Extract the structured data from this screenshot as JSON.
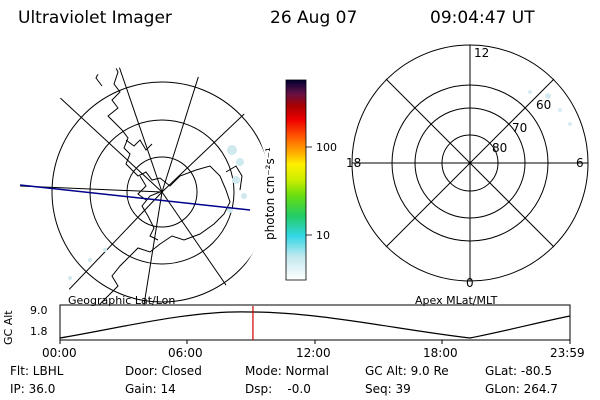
{
  "header": {
    "title": "Ultraviolet Imager",
    "date": "26 Aug 07",
    "time": "09:04:47 UT"
  },
  "left_panel": {
    "label": "Geographic Lat/Lon"
  },
  "right_panel": {
    "label": "Apex  MLat/MLT",
    "mlt_labels": {
      "top": "12",
      "left": "18",
      "right": "6",
      "bottom": "0"
    },
    "lat_labels": [
      "60",
      "70",
      "80"
    ]
  },
  "colorbar": {
    "unit_label": "photon cm⁻²s⁻¹",
    "tick_100": "100",
    "tick_10": "10"
  },
  "altitude_plot": {
    "ylabel": "GC Alt",
    "y_ticks": [
      "9.0",
      "1.8"
    ],
    "x_ticks": [
      "00:00",
      "06:00",
      "12:00",
      "18:00",
      "23:59"
    ],
    "current_time_hours": 9.08
  },
  "info": {
    "flt": "Flt: LBHL",
    "ip": "IP: 36.0",
    "door": "Door: Closed",
    "gain": "Gain: 14",
    "mode": "Mode: Normal",
    "dsp": "Dsp:    -0.0",
    "gc_alt": "GC Alt: 9.0 Re",
    "seq": "Seq: 39",
    "glat": "GLat: -80.5",
    "glon": "GLon: 264.7"
  },
  "colors": {
    "red_marker": "#d00000",
    "track_line": "#00008b"
  }
}
